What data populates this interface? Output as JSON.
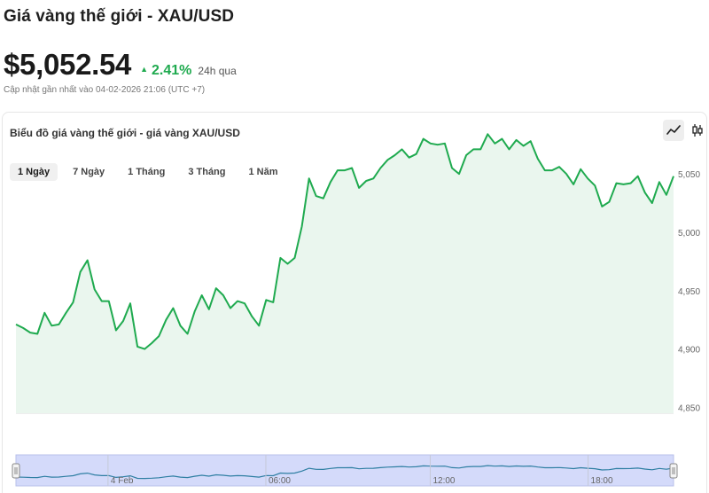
{
  "header": {
    "title": "Giá vàng thế giới - XAU/USD",
    "price": "$5,052.54",
    "change": "2.41%",
    "change_period": "24h qua",
    "updated": "Cập nhật gần nhất vào 04-02-2026 21:06 (UTC +7)"
  },
  "colors": {
    "accent": "#1faa4f",
    "area_fill": "#eaf6ee",
    "navigator_fill": "#d4dafa",
    "navigator_line": "#2f7fa3"
  },
  "card": {
    "title": "Biểu đồ giá vàng thế giới - giá vàng XAU/USD",
    "chart_type_icons": [
      "line-chart-icon",
      "candlestick-icon"
    ]
  },
  "tabs": [
    {
      "label": "1 Ngày",
      "active": true
    },
    {
      "label": "7 Ngày",
      "active": false
    },
    {
      "label": "1 Tháng",
      "active": false
    },
    {
      "label": "3 Tháng",
      "active": false
    },
    {
      "label": "1 Năm",
      "active": false
    }
  ],
  "chart_data": {
    "type": "area",
    "ylim": [
      4845,
      5085
    ],
    "y_ticks": [
      4850,
      4900,
      4950,
      5000,
      5050
    ],
    "y_tick_labels": [
      "4,850",
      "4,900",
      "4,950",
      "5,000",
      "5,050"
    ],
    "navigator_labels": [
      {
        "label": "4 Feb",
        "pos": 0.14
      },
      {
        "label": "06:00",
        "pos": 0.38
      },
      {
        "label": "12:00",
        "pos": 0.63
      },
      {
        "label": "18:00",
        "pos": 0.87
      }
    ],
    "values": [
      4921,
      4918,
      4914,
      4913,
      4931,
      4920,
      4921,
      4931,
      4940,
      4966,
      4976,
      4951,
      4941,
      4941,
      4916,
      4924,
      4939,
      4902,
      4900,
      4905,
      4911,
      4925,
      4935,
      4920,
      4913,
      4932,
      4946,
      4934,
      4952,
      4946,
      4935,
      4941,
      4939,
      4928,
      4920,
      4942,
      4940,
      4978,
      4973,
      4978,
      5005,
      5046,
      5031,
      5029,
      5043,
      5053,
      5053,
      5055,
      5038,
      5044,
      5046,
      5055,
      5062,
      5066,
      5071,
      5064,
      5067,
      5080,
      5076,
      5075,
      5076,
      5055,
      5050,
      5066,
      5071,
      5071,
      5084,
      5076,
      5080,
      5071,
      5079,
      5074,
      5078,
      5063,
      5053,
      5053,
      5056,
      5050,
      5041,
      5054,
      5046,
      5040,
      5022,
      5026,
      5042,
      5041,
      5042,
      5048,
      5034,
      5025,
      5043,
      5032,
      5048
    ]
  }
}
